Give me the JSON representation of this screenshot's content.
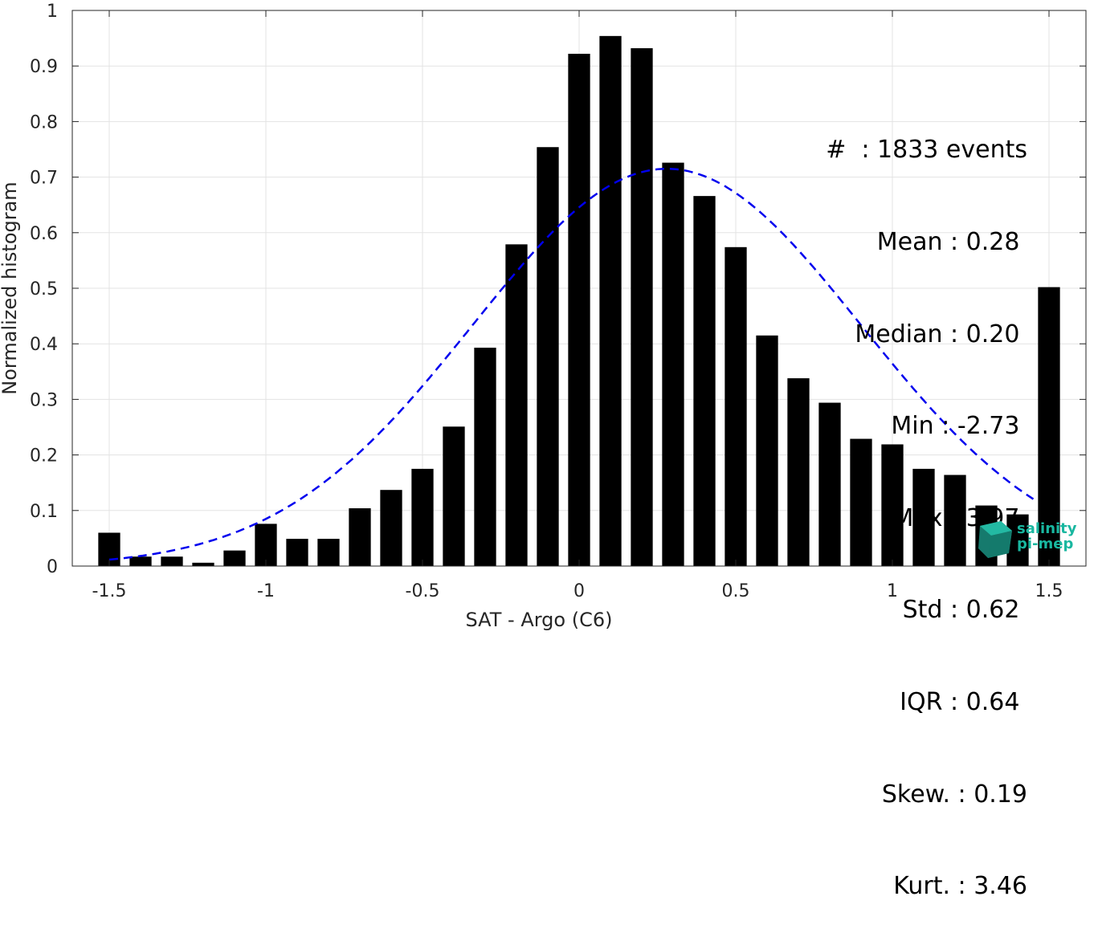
{
  "chart_data": {
    "type": "bar",
    "x": [
      -1.5,
      -1.4,
      -1.3,
      -1.2,
      -1.1,
      -1.0,
      -0.9,
      -0.8,
      -0.7,
      -0.6,
      -0.5,
      -0.4,
      -0.3,
      -0.2,
      -0.1,
      0.0,
      0.1,
      0.2,
      0.3,
      0.4,
      0.5,
      0.6,
      0.7,
      0.8,
      0.9,
      1.0,
      1.1,
      1.2,
      1.3,
      1.4,
      1.5
    ],
    "values": [
      0.06,
      0.017,
      0.017,
      0.006,
      0.028,
      0.076,
      0.049,
      0.049,
      0.104,
      0.137,
      0.175,
      0.251,
      0.393,
      0.579,
      0.754,
      0.922,
      0.954,
      0.932,
      0.726,
      0.666,
      0.574,
      0.415,
      0.338,
      0.294,
      0.229,
      0.219,
      0.175,
      0.164,
      0.109,
      0.093,
      0.502
    ],
    "fit_curve": {
      "style": "dashed",
      "color": "#0000ee",
      "mean": 0.28,
      "std": 0.62,
      "peak": 0.715
    },
    "xlabel": "SAT - Argo (C6)",
    "ylabel": "Normalized histogram",
    "xlim": [
      -1.62,
      1.62
    ],
    "ylim": [
      0,
      1
    ],
    "xticks": [
      "-1.5",
      "-1",
      "-0.5",
      "0",
      "0.5",
      "1",
      "1.5"
    ],
    "yticks": [
      "0",
      "0.1",
      "0.2",
      "0.3",
      "0.4",
      "0.5",
      "0.6",
      "0.7",
      "0.8",
      "0.9",
      "1"
    ],
    "grid": true,
    "bar_color": "#000000"
  },
  "stats": [
    "#  : 1833 events",
    "Mean : 0.28 ",
    "Median : 0.20 ",
    "Min : -2.73 ",
    "Max : 3.97 ",
    "Std : 0.62 ",
    "IQR : 0.64 ",
    "Skew. : 0.19",
    "Kurt. : 3.46"
  ],
  "logo": {
    "line1": "salinity",
    "line2": "pi-mep",
    "color": "#19b7a0"
  }
}
